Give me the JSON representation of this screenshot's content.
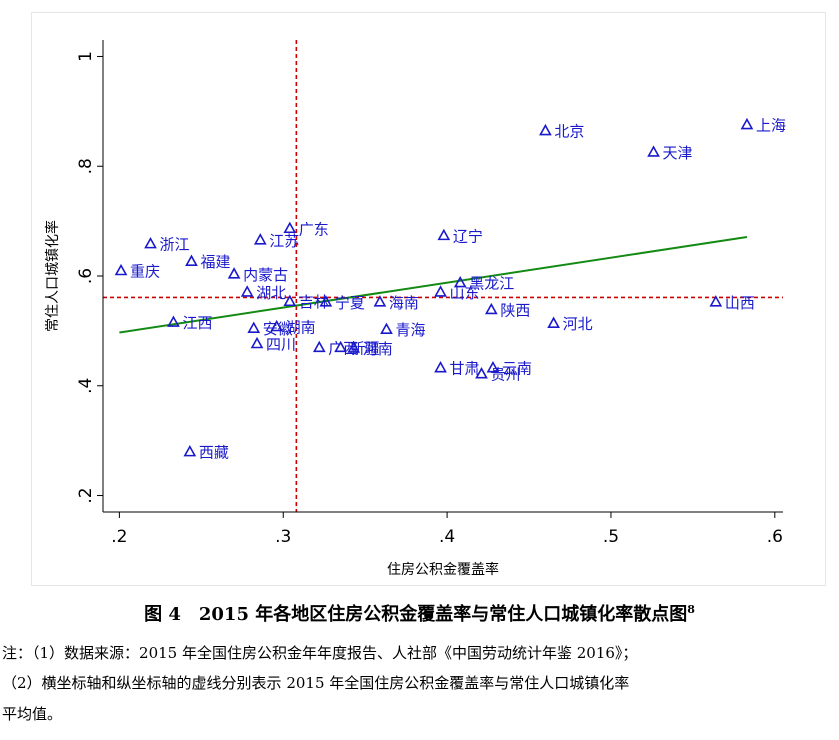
{
  "chart_data": {
    "type": "scatter",
    "xlabel": "住房公积金覆盖率",
    "ylabel": "常住人口城镇化率",
    "xlim": [
      0.19,
      0.605
    ],
    "ylim": [
      0.17,
      1.03
    ],
    "xticks": [
      0.2,
      0.3,
      0.4,
      0.5,
      0.6
    ],
    "xtick_labels": [
      ".2",
      ".3",
      ".4",
      ".5",
      ".6"
    ],
    "yticks": [
      0.2,
      0.4,
      0.6,
      0.8,
      1.0
    ],
    "ytick_labels": [
      ".2",
      ".4",
      ".6",
      ".8",
      "1"
    ],
    "grid": false,
    "reference_lines": {
      "x_mean": 0.308,
      "y_mean": 0.561
    },
    "fit_line": {
      "x": [
        0.2,
        0.583
      ],
      "y": [
        0.497,
        0.671
      ]
    },
    "marker": "triangle-hollow",
    "points": [
      {
        "label": "上海",
        "x": 0.583,
        "y": 0.876
      },
      {
        "label": "北京",
        "x": 0.46,
        "y": 0.865
      },
      {
        "label": "天津",
        "x": 0.526,
        "y": 0.826
      },
      {
        "label": "广东",
        "x": 0.304,
        "y": 0.687
      },
      {
        "label": "辽宁",
        "x": 0.398,
        "y": 0.674
      },
      {
        "label": "江苏",
        "x": 0.286,
        "y": 0.666
      },
      {
        "label": "浙江",
        "x": 0.219,
        "y": 0.659
      },
      {
        "label": "福建",
        "x": 0.244,
        "y": 0.627
      },
      {
        "label": "重庆",
        "x": 0.201,
        "y": 0.61
      },
      {
        "label": "内蒙古",
        "x": 0.27,
        "y": 0.604
      },
      {
        "label": "黑龙江",
        "x": 0.408,
        "y": 0.588
      },
      {
        "label": "湖北",
        "x": 0.278,
        "y": 0.571
      },
      {
        "label": "山东",
        "x": 0.396,
        "y": 0.571
      },
      {
        "label": "吉林",
        "x": 0.304,
        "y": 0.554
      },
      {
        "label": "宁夏",
        "x": 0.326,
        "y": 0.553
      },
      {
        "label": "海南",
        "x": 0.359,
        "y": 0.553
      },
      {
        "label": "山西",
        "x": 0.564,
        "y": 0.553
      },
      {
        "label": "陕西",
        "x": 0.427,
        "y": 0.539
      },
      {
        "label": "江西",
        "x": 0.233,
        "y": 0.516
      },
      {
        "label": "河北",
        "x": 0.465,
        "y": 0.514
      },
      {
        "label": "安徽",
        "x": 0.282,
        "y": 0.505
      },
      {
        "label": "湖南",
        "x": 0.296,
        "y": 0.508
      },
      {
        "label": "青海",
        "x": 0.363,
        "y": 0.503
      },
      {
        "label": "四川",
        "x": 0.284,
        "y": 0.477
      },
      {
        "label": "广西",
        "x": 0.322,
        "y": 0.47
      },
      {
        "label": "新疆",
        "x": 0.335,
        "y": 0.47
      },
      {
        "label": "河南",
        "x": 0.343,
        "y": 0.469
      },
      {
        "label": "甘肃",
        "x": 0.396,
        "y": 0.433
      },
      {
        "label": "云南",
        "x": 0.428,
        "y": 0.433
      },
      {
        "label": "贵州",
        "x": 0.421,
        "y": 0.422
      },
      {
        "label": "西藏",
        "x": 0.243,
        "y": 0.28
      }
    ],
    "colors": {
      "marker": "#1a1acc",
      "fit_line": "#138a13",
      "reference_line": "#cc0000",
      "axis": "#000000"
    }
  },
  "caption": {
    "figure_number": "图 4",
    "title": "2015 年各地区住房公积金覆盖率与常住人口城镇化率散点图",
    "footnote_mark": "8"
  },
  "notes": {
    "line1": "注：（1）数据来源：2015 年全国住房公积金年年度报告、人社部《中国劳动统计年鉴 2016》；",
    "line2": "（2）横坐标轴和纵坐标轴的虚线分别表示 2015 年全国住房公积金覆盖率与常住人口城镇化率",
    "line3": "平均值。"
  }
}
